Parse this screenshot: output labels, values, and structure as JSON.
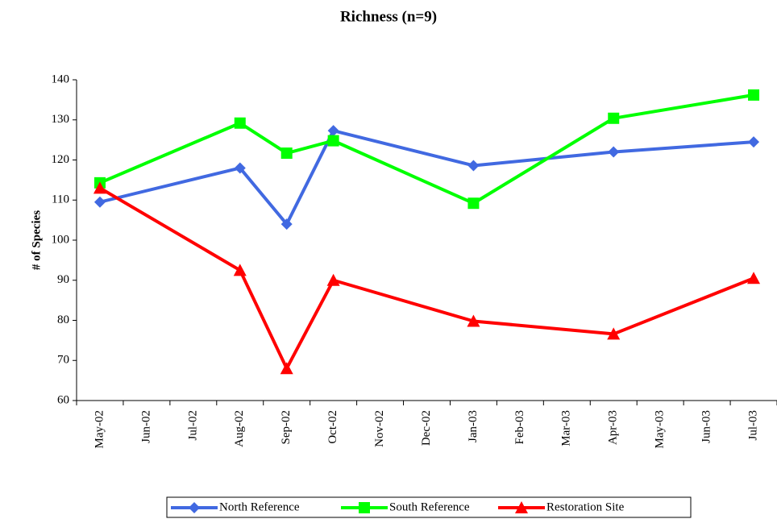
{
  "chart_data": {
    "type": "line",
    "title": "Richness (n=9)",
    "y_label": "# of Species",
    "xticks": [
      "May-02",
      "Jun-02",
      "Jul-02",
      "Aug-02",
      "Sep-02",
      "Oct-02",
      "Nov-02",
      "Dec-02",
      "Jan-03",
      "Feb-03",
      "Mar-03",
      "Apr-03",
      "May-03",
      "Jun-03",
      "Jul-03"
    ],
    "x": [
      "May-02",
      "Aug-02",
      "Sep-02",
      "Oct-02",
      "Jan-03",
      "Apr-03",
      "Jul-03"
    ],
    "series": [
      {
        "name": "North Reference",
        "color": "#4169e1",
        "marker": "diamond",
        "values": [
          109.5,
          118,
          104,
          127.3,
          118.6,
          122,
          124.5
        ]
      },
      {
        "name": "South Reference",
        "color": "#00ff00",
        "marker": "square",
        "values": [
          114.3,
          129.2,
          121.7,
          124.8,
          109.2,
          130.4,
          136.2
        ]
      },
      {
        "name": "Restoration Site",
        "color": "#ff0000",
        "marker": "triangle",
        "values": [
          113,
          92.5,
          68,
          90,
          79.8,
          76.6,
          90.5
        ]
      }
    ],
    "ylim": [
      60,
      140
    ],
    "yticks": [
      60,
      70,
      80,
      90,
      100,
      110,
      120,
      130,
      140
    ],
    "grid": false,
    "legend": "bottom"
  }
}
